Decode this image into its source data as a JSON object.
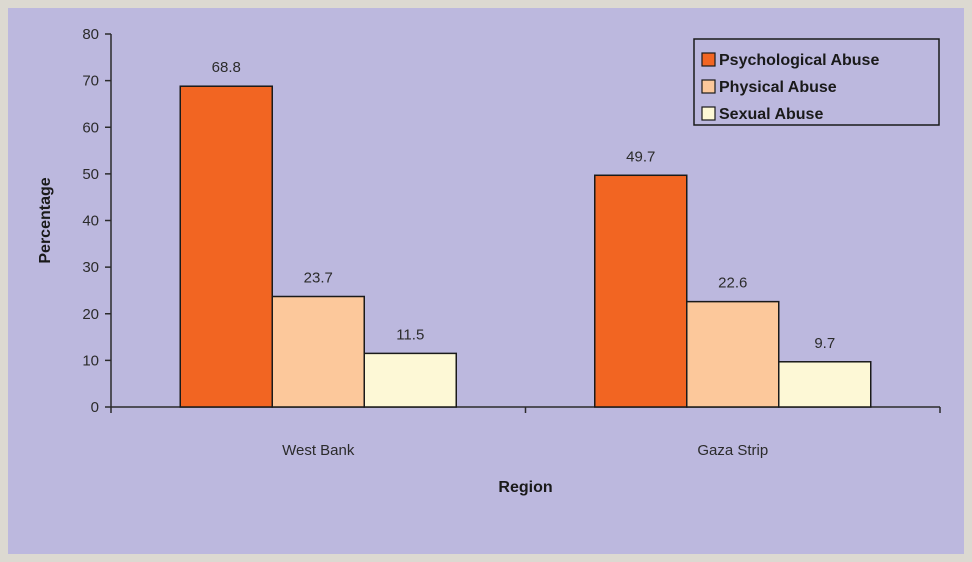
{
  "chart_data": {
    "type": "bar",
    "title": "",
    "xlabel": "Region",
    "ylabel": "Percentage",
    "categories": [
      "West Bank",
      "Gaza Strip"
    ],
    "series": [
      {
        "name": "Psychological Abuse",
        "values": [
          68.8,
          49.7
        ],
        "color": "#f26522"
      },
      {
        "name": "Physical Abuse",
        "values": [
          23.7,
          22.6
        ],
        "color": "#fcc89b"
      },
      {
        "name": "Sexual Abuse",
        "values": [
          11.5,
          9.7
        ],
        "color": "#fdf8d6"
      }
    ],
    "ylim": [
      0,
      80
    ],
    "yticks": [
      0,
      10,
      20,
      30,
      40,
      50,
      60,
      70,
      80
    ],
    "data_labels": [
      [
        "68.8",
        "49.7"
      ],
      [
        "23.7",
        "22.6"
      ],
      [
        "11.5",
        "9.7"
      ]
    ],
    "legend_position": "top-right",
    "grid": false
  },
  "colors": {
    "background": "#bcb8de",
    "page": "#dcd9d1",
    "axis": "#2b2b2b"
  }
}
